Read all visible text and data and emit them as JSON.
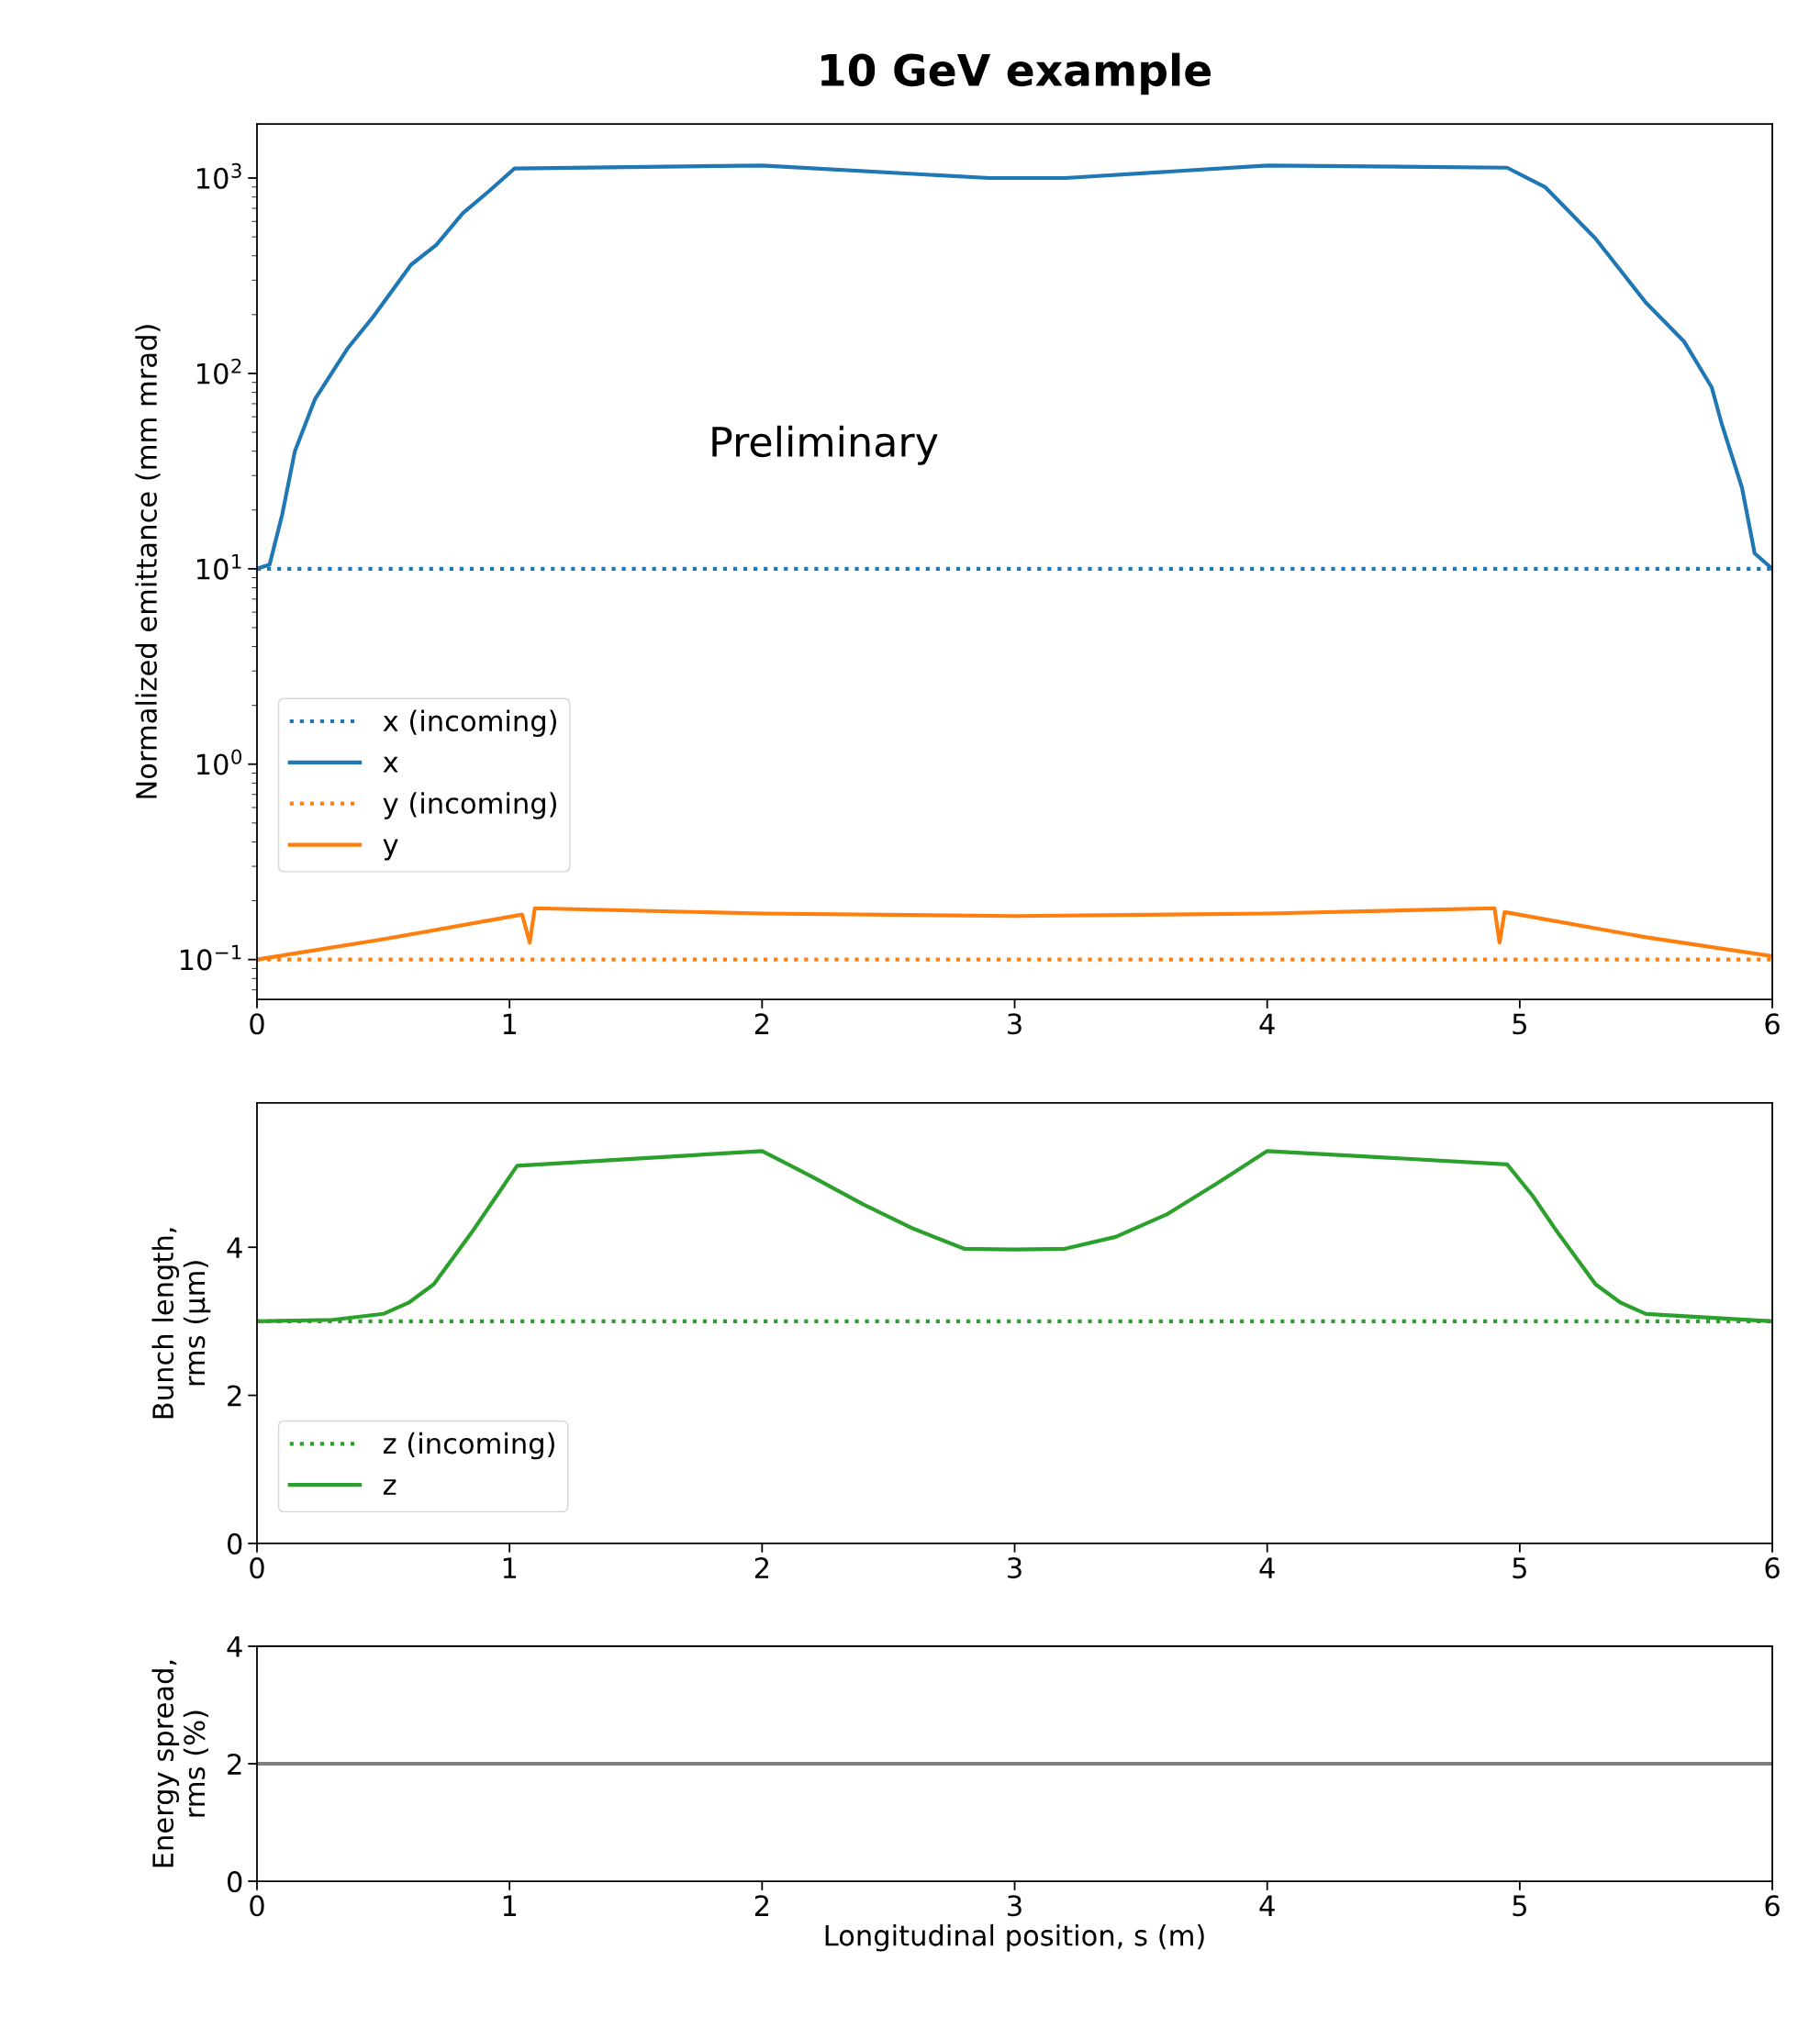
{
  "chart_data": [
    {
      "type": "line",
      "title": "10 GeV example",
      "ylabel": "Normalized emittance (mm mrad)",
      "log": "y",
      "xlim": [
        0,
        6
      ],
      "xticks": [
        0,
        1,
        2,
        3,
        4,
        5,
        6
      ],
      "ylim": [
        0.0625,
        1890
      ],
      "yticks": [
        {
          "value": 0.1,
          "label": "10$^{−1}$"
        },
        {
          "value": 1,
          "label": "10$^{0}$"
        },
        {
          "value": 10,
          "label": "10$^{1}$"
        },
        {
          "value": 100,
          "label": "10$^{2}$"
        },
        {
          "value": 1000,
          "label": "10$^{3}$"
        }
      ],
      "legend": "lower left",
      "grid": false,
      "annotations": [
        "Preliminary"
      ],
      "series": [
        {
          "name": "x (incoming)",
          "color": "#1f77b4",
          "line_style": "dotted",
          "x": [
            0,
            6
          ],
          "values": [
            10,
            10
          ]
        },
        {
          "name": "x",
          "color": "#1f77b4",
          "line_style": "solid",
          "x": [
            0,
            0.05,
            0.1,
            0.15,
            0.23,
            0.36,
            0.46,
            0.61,
            0.71,
            0.815,
            0.92,
            1.02,
            2.0,
            2.9,
            3.2,
            4.0,
            4.95,
            5.1,
            5.3,
            5.5,
            5.65,
            5.76,
            5.8,
            5.88,
            5.93,
            6.0
          ],
          "values": [
            10,
            10.5,
            19,
            40,
            74,
            135,
            195,
            360,
            455,
            660,
            860,
            1120,
            1160,
            1000,
            1000,
            1160,
            1130,
            900,
            490,
            230,
            146,
            85,
            55,
            26,
            12,
            10
          ]
        },
        {
          "name": "y (incoming)",
          "color": "#ff7f0e",
          "line_style": "dotted",
          "x": [
            0,
            6
          ],
          "values": [
            0.1,
            0.1
          ]
        },
        {
          "name": "y",
          "color": "#ff7f0e",
          "line_style": "solid",
          "x": [
            0,
            0.5,
            1.05,
            1.08,
            1.1,
            2.0,
            3.0,
            4.0,
            4.9,
            4.92,
            4.94,
            5.5,
            6.0
          ],
          "values": [
            0.1,
            0.127,
            0.17,
            0.122,
            0.183,
            0.172,
            0.167,
            0.172,
            0.183,
            0.122,
            0.175,
            0.13,
            0.104
          ]
        }
      ]
    },
    {
      "type": "line",
      "ylabel": "Bunch length,\nrms (µm)",
      "xlim": [
        0,
        6
      ],
      "xticks": [
        0,
        1,
        2,
        3,
        4,
        5,
        6
      ],
      "ylim": [
        0,
        5.95
      ],
      "yticks": [
        0,
        2,
        4
      ],
      "legend": "lower left",
      "grid": false,
      "series": [
        {
          "name": "z (incoming)",
          "color": "#2ca02c",
          "line_style": "dotted",
          "x": [
            0,
            6
          ],
          "values": [
            3.0,
            3.0
          ]
        },
        {
          "name": "z",
          "color": "#2ca02c",
          "line_style": "solid",
          "x": [
            0,
            0.3,
            0.5,
            0.6,
            0.7,
            0.85,
            0.95,
            1.03,
            2.0,
            2.2,
            2.4,
            2.6,
            2.8,
            3.0,
            3.2,
            3.4,
            3.6,
            3.8,
            4.0,
            4.95,
            5.05,
            5.15,
            5.3,
            5.4,
            5.5,
            6.0
          ],
          "values": [
            3.0,
            3.02,
            3.1,
            3.25,
            3.5,
            4.2,
            4.7,
            5.1,
            5.3,
            4.95,
            4.58,
            4.25,
            3.98,
            3.97,
            3.98,
            4.14,
            4.44,
            4.86,
            5.3,
            5.12,
            4.7,
            4.2,
            3.5,
            3.25,
            3.1,
            3.0
          ]
        }
      ]
    },
    {
      "type": "line",
      "ylabel": "Energy spread,\nrms (%)",
      "xlabel": "Longitudinal position, s (m)",
      "xlim": [
        0,
        6
      ],
      "xticks": [
        0,
        1,
        2,
        3,
        4,
        5,
        6
      ],
      "ylim": [
        0,
        4
      ],
      "yticks": [
        0,
        2,
        4
      ],
      "grid": false,
      "series": [
        {
          "color": "#7f7f7f",
          "line_style": "solid",
          "x": [
            0,
            6
          ],
          "values": [
            2,
            2
          ]
        }
      ]
    }
  ]
}
